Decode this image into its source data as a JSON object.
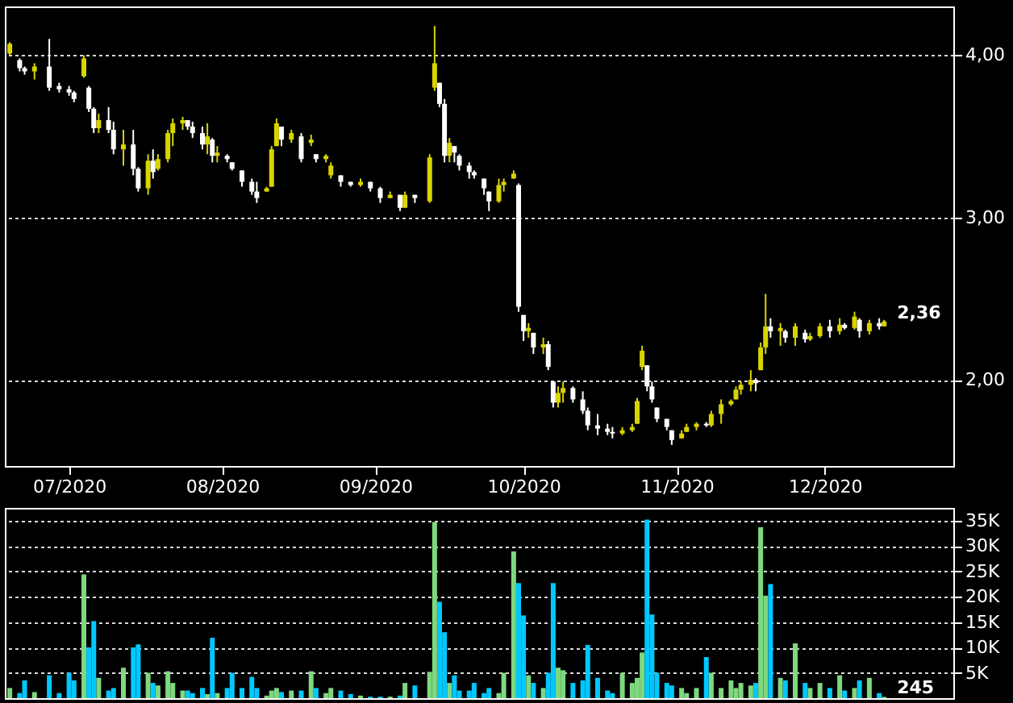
{
  "chart_data": [
    {
      "type": "candlestick",
      "xlim": [
        "2020-06-18",
        "2020-12-27"
      ],
      "ylim": [
        1.47,
        4.3
      ],
      "xticks": [
        {
          "value": "2020-07-01",
          "label": "07/2020"
        },
        {
          "value": "2020-08-01",
          "label": "08/2020"
        },
        {
          "value": "2020-09-01",
          "label": "09/2020"
        },
        {
          "value": "2020-10-01",
          "label": "10/2020"
        },
        {
          "value": "2020-11-01",
          "label": "11/2020"
        },
        {
          "value": "2020-12-01",
          "label": "12/2020"
        }
      ],
      "yticks": [
        {
          "value": 2,
          "label": "2,00"
        },
        {
          "value": 3,
          "label": "3,00"
        },
        {
          "value": 4,
          "label": "4,00"
        }
      ],
      "grid": "y",
      "annotations": [
        {
          "text": "2,36",
          "x": "2020-12-13",
          "y": 2.36
        }
      ],
      "series": [
        {
          "color": "#d8d400",
          "x": [
            "2020-06-19",
            "2020-06-24",
            "2020-07-04",
            "2020-07-07",
            "2020-07-12",
            "2020-07-17",
            "2020-07-19",
            "2020-07-21",
            "2020-07-22",
            "2020-07-24",
            "2020-07-29",
            "2020-07-31",
            "2020-08-10",
            "2020-08-11",
            "2020-08-12",
            "2020-08-15",
            "2020-08-19",
            "2020-08-22",
            "2020-08-23",
            "2020-08-29",
            "2020-09-04",
            "2020-09-07",
            "2020-09-12",
            "2020-09-13",
            "2020-09-16",
            "2020-09-26",
            "2020-09-27",
            "2020-09-29",
            "2020-10-02",
            "2020-10-05",
            "2020-10-08",
            "2020-10-09",
            "2020-10-21",
            "2020-10-23",
            "2020-10-24",
            "2020-10-25",
            "2020-11-02",
            "2020-11-03",
            "2020-11-05",
            "2020-11-08",
            "2020-11-10",
            "2020-11-12",
            "2020-11-13",
            "2020-11-14",
            "2020-11-16",
            "2020-11-18",
            "2020-11-19",
            "2020-11-22",
            "2020-11-25",
            "2020-11-28",
            "2020-11-30",
            "2020-12-04",
            "2020-12-07",
            "2020-12-10",
            "2020-12-13"
          ],
          "ohlc": [
            [
              4.01,
              4.08,
              4.0,
              4.07
            ],
            [
              3.9,
              3.95,
              3.85,
              3.93
            ],
            [
              3.87,
              4.0,
              3.86,
              3.98
            ],
            [
              3.55,
              3.64,
              3.52,
              3.6
            ],
            [
              3.42,
              3.54,
              3.32,
              3.45
            ],
            [
              3.18,
              3.39,
              3.14,
              3.35
            ],
            [
              3.3,
              3.39,
              3.29,
              3.36
            ],
            [
              3.36,
              3.54,
              3.34,
              3.52
            ],
            [
              3.52,
              3.61,
              3.44,
              3.58
            ],
            [
              3.58,
              3.62,
              3.54,
              3.6
            ],
            [
              3.45,
              3.58,
              3.39,
              3.5
            ],
            [
              3.38,
              3.44,
              3.34,
              3.4
            ],
            [
              3.16,
              3.19,
              3.16,
              3.18
            ],
            [
              3.19,
              3.44,
              3.19,
              3.42
            ],
            [
              3.44,
              3.61,
              3.44,
              3.58
            ],
            [
              3.48,
              3.54,
              3.46,
              3.52
            ],
            [
              3.46,
              3.51,
              3.44,
              3.48
            ],
            [
              3.36,
              3.39,
              3.34,
              3.38
            ],
            [
              3.26,
              3.34,
              3.24,
              3.32
            ],
            [
              3.2,
              3.24,
              3.19,
              3.22
            ],
            [
              3.12,
              3.16,
              3.12,
              3.14
            ],
            [
              3.06,
              3.16,
              3.06,
              3.14
            ],
            [
              3.1,
              3.39,
              3.09,
              3.37
            ],
            [
              3.8,
              4.18,
              3.78,
              3.95
            ],
            [
              3.38,
              3.49,
              3.34,
              3.46
            ],
            [
              3.1,
              3.24,
              3.09,
              3.2
            ],
            [
              3.2,
              3.24,
              3.16,
              3.22
            ],
            [
              3.24,
              3.29,
              3.24,
              3.27
            ],
            [
              2.3,
              2.35,
              2.26,
              2.32
            ],
            [
              2.2,
              2.26,
              2.16,
              2.22
            ],
            [
              1.86,
              1.96,
              1.83,
              1.92
            ],
            [
              1.92,
              1.99,
              1.86,
              1.95
            ],
            [
              1.67,
              1.71,
              1.66,
              1.69
            ],
            [
              1.69,
              1.73,
              1.68,
              1.71
            ],
            [
              1.73,
              1.89,
              1.73,
              1.87
            ],
            [
              2.08,
              2.21,
              2.06,
              2.18
            ],
            [
              1.64,
              1.69,
              1.64,
              1.67
            ],
            [
              1.68,
              1.73,
              1.68,
              1.71
            ],
            [
              1.71,
              1.74,
              1.69,
              1.73
            ],
            [
              1.72,
              1.81,
              1.71,
              1.79
            ],
            [
              1.79,
              1.88,
              1.73,
              1.85
            ],
            [
              1.85,
              1.88,
              1.84,
              1.87
            ],
            [
              1.88,
              1.96,
              1.88,
              1.94
            ],
            [
              1.94,
              1.99,
              1.91,
              1.97
            ],
            [
              1.97,
              2.06,
              1.93,
              2.0
            ],
            [
              2.06,
              2.23,
              2.06,
              2.2
            ],
            [
              2.2,
              2.53,
              2.16,
              2.33
            ],
            [
              2.3,
              2.35,
              2.21,
              2.32
            ],
            [
              2.26,
              2.35,
              2.21,
              2.33
            ],
            [
              2.25,
              2.29,
              2.24,
              2.27
            ],
            [
              2.27,
              2.35,
              2.26,
              2.33
            ],
            [
              2.3,
              2.38,
              2.28,
              2.34
            ],
            [
              2.32,
              2.42,
              2.31,
              2.39
            ],
            [
              2.3,
              2.37,
              2.28,
              2.35
            ],
            [
              2.33,
              2.37,
              2.33,
              2.36
            ]
          ]
        },
        {
          "color": "#ffffff",
          "x": [
            "2020-06-21",
            "2020-06-22",
            "2020-06-27",
            "2020-06-29",
            "2020-07-01",
            "2020-07-02",
            "2020-07-05",
            "2020-07-06",
            "2020-07-09",
            "2020-07-10",
            "2020-07-14",
            "2020-07-15",
            "2020-07-18",
            "2020-07-25",
            "2020-07-26",
            "2020-07-28",
            "2020-07-30",
            "2020-08-02",
            "2020-08-03",
            "2020-08-05",
            "2020-08-07",
            "2020-08-08",
            "2020-08-13",
            "2020-08-17",
            "2020-08-20",
            "2020-08-25",
            "2020-08-27",
            "2020-08-31",
            "2020-09-02",
            "2020-09-06",
            "2020-09-09",
            "2020-09-14",
            "2020-09-15",
            "2020-09-17",
            "2020-09-18",
            "2020-09-20",
            "2020-09-21",
            "2020-09-23",
            "2020-09-24",
            "2020-09-30",
            "2020-10-01",
            "2020-10-03",
            "2020-10-06",
            "2020-10-07",
            "2020-10-11",
            "2020-10-13",
            "2020-10-14",
            "2020-10-16",
            "2020-10-18",
            "2020-10-19",
            "2020-10-26",
            "2020-10-27",
            "2020-10-28",
            "2020-10-30",
            "2020-10-31",
            "2020-11-07",
            "2020-11-17",
            "2020-11-20",
            "2020-11-23",
            "2020-11-27",
            "2020-12-02",
            "2020-12-05",
            "2020-12-08",
            "2020-12-12"
          ],
          "ohlc": [
            [
              3.97,
              3.98,
              3.9,
              3.92
            ],
            [
              3.92,
              3.93,
              3.88,
              3.9
            ],
            [
              3.93,
              4.1,
              3.78,
              3.8
            ],
            [
              3.81,
              3.83,
              3.77,
              3.79
            ],
            [
              3.79,
              3.81,
              3.75,
              3.77
            ],
            [
              3.77,
              3.78,
              3.71,
              3.73
            ],
            [
              3.8,
              3.81,
              3.65,
              3.67
            ],
            [
              3.67,
              3.68,
              3.52,
              3.55
            ],
            [
              3.6,
              3.68,
              3.52,
              3.54
            ],
            [
              3.54,
              3.59,
              3.39,
              3.42
            ],
            [
              3.45,
              3.54,
              3.26,
              3.3
            ],
            [
              3.3,
              3.31,
              3.16,
              3.18
            ],
            [
              3.35,
              3.42,
              3.24,
              3.28
            ],
            [
              3.6,
              3.6,
              3.54,
              3.56
            ],
            [
              3.56,
              3.59,
              3.49,
              3.52
            ],
            [
              3.52,
              3.56,
              3.42,
              3.45
            ],
            [
              3.48,
              3.49,
              3.34,
              3.38
            ],
            [
              3.38,
              3.39,
              3.34,
              3.36
            ],
            [
              3.34,
              3.34,
              3.29,
              3.3
            ],
            [
              3.29,
              3.29,
              3.19,
              3.22
            ],
            [
              3.22,
              3.24,
              3.14,
              3.16
            ],
            [
              3.16,
              3.22,
              3.09,
              3.12
            ],
            [
              3.56,
              3.56,
              3.44,
              3.48
            ],
            [
              3.5,
              3.52,
              3.34,
              3.36
            ],
            [
              3.39,
              3.39,
              3.34,
              3.36
            ],
            [
              3.26,
              3.26,
              3.19,
              3.22
            ],
            [
              3.22,
              3.22,
              3.19,
              3.2
            ],
            [
              3.22,
              3.22,
              3.16,
              3.18
            ],
            [
              3.18,
              3.19,
              3.09,
              3.12
            ],
            [
              3.14,
              3.14,
              3.04,
              3.06
            ],
            [
              3.14,
              3.14,
              3.09,
              3.12
            ],
            [
              3.83,
              3.83,
              3.68,
              3.7
            ],
            [
              3.7,
              3.73,
              3.34,
              3.38
            ],
            [
              3.44,
              3.44,
              3.34,
              3.4
            ],
            [
              3.38,
              3.39,
              3.29,
              3.32
            ],
            [
              3.32,
              3.34,
              3.24,
              3.28
            ],
            [
              3.28,
              3.29,
              3.24,
              3.26
            ],
            [
              3.24,
              3.24,
              3.14,
              3.18
            ],
            [
              3.16,
              3.16,
              3.04,
              3.1
            ],
            [
              3.2,
              3.21,
              2.42,
              2.45
            ],
            [
              2.4,
              2.4,
              2.24,
              2.3
            ],
            [
              2.29,
              2.29,
              2.16,
              2.2
            ],
            [
              2.22,
              2.24,
              2.06,
              2.08
            ],
            [
              1.99,
              1.99,
              1.83,
              1.86
            ],
            [
              1.95,
              1.96,
              1.86,
              1.88
            ],
            [
              1.88,
              1.93,
              1.79,
              1.81
            ],
            [
              1.81,
              1.83,
              1.69,
              1.72
            ],
            [
              1.72,
              1.79,
              1.66,
              1.7
            ],
            [
              1.7,
              1.73,
              1.66,
              1.68
            ],
            [
              1.68,
              1.71,
              1.64,
              1.67
            ],
            [
              2.09,
              2.09,
              1.93,
              1.96
            ],
            [
              1.96,
              1.99,
              1.86,
              1.88
            ],
            [
              1.83,
              1.83,
              1.74,
              1.76
            ],
            [
              1.76,
              1.76,
              1.69,
              1.71
            ],
            [
              1.69,
              1.69,
              1.6,
              1.63
            ],
            [
              1.73,
              1.74,
              1.71,
              1.72
            ],
            [
              2.0,
              2.01,
              1.93,
              1.98
            ],
            [
              2.33,
              2.38,
              2.26,
              2.3
            ],
            [
              2.3,
              2.31,
              2.23,
              2.26
            ],
            [
              2.29,
              2.31,
              2.23,
              2.25
            ],
            [
              2.33,
              2.37,
              2.26,
              2.3
            ],
            [
              2.34,
              2.35,
              2.31,
              2.32
            ],
            [
              2.37,
              2.38,
              2.26,
              2.3
            ],
            [
              2.35,
              2.38,
              2.31,
              2.33
            ]
          ]
        }
      ]
    },
    {
      "type": "bar",
      "xlim": [
        "2020-06-18",
        "2020-12-27"
      ],
      "ylim": [
        0,
        37500
      ],
      "tick_labels": "y",
      "yticks": [
        {
          "value": 5000,
          "label": "5K"
        },
        {
          "value": 10000,
          "label": "10K"
        },
        {
          "value": 15000,
          "label": "15K"
        },
        {
          "value": 20000,
          "label": "20K"
        },
        {
          "value": 25000,
          "label": "25K"
        },
        {
          "value": 30000,
          "label": "30K"
        },
        {
          "value": 35000,
          "label": "35K"
        }
      ],
      "grid": "y",
      "annotations": [
        {
          "text": "245",
          "x": "2020-12-13",
          "y": 245
        }
      ],
      "series": [
        {
          "color": "#7ed87e",
          "x": [
            "2020-06-19",
            "2020-06-24",
            "2020-07-04",
            "2020-07-07",
            "2020-07-12",
            "2020-07-17",
            "2020-07-19",
            "2020-07-21",
            "2020-07-22",
            "2020-07-24",
            "2020-07-29",
            "2020-07-31",
            "2020-08-10",
            "2020-08-11",
            "2020-08-12",
            "2020-08-15",
            "2020-08-19",
            "2020-08-22",
            "2020-08-23",
            "2020-08-29",
            "2020-09-04",
            "2020-09-07",
            "2020-09-12",
            "2020-09-13",
            "2020-09-16",
            "2020-09-26",
            "2020-09-27",
            "2020-09-29",
            "2020-10-02",
            "2020-10-05",
            "2020-10-08",
            "2020-10-09",
            "2020-10-21",
            "2020-10-23",
            "2020-10-24",
            "2020-10-25",
            "2020-11-02",
            "2020-11-03",
            "2020-11-05",
            "2020-11-08",
            "2020-11-10",
            "2020-11-12",
            "2020-11-13",
            "2020-11-14",
            "2020-11-16",
            "2020-11-18",
            "2020-11-19",
            "2020-11-22",
            "2020-11-25",
            "2020-11-28",
            "2020-11-30",
            "2020-12-04",
            "2020-12-07",
            "2020-12-10",
            "2020-12-13"
          ],
          "values": [
            2000,
            1200,
            24400,
            4000,
            6000,
            5000,
            2500,
            5300,
            3000,
            1500,
            800,
            1000,
            500,
            1500,
            2000,
            1500,
            5300,
            1000,
            2000,
            500,
            300,
            3000,
            5200,
            34700,
            3000,
            1000,
            5000,
            28900,
            4500,
            2000,
            6000,
            5500,
            5000,
            3000,
            4000,
            9000,
            2000,
            1000,
            2000,
            5000,
            2000,
            3500,
            2000,
            3000,
            2500,
            33700,
            20200,
            4000,
            10800,
            2000,
            3000,
            4500,
            2000,
            4000,
            245
          ]
        },
        {
          "color": "#00c8ff",
          "x": [
            "2020-06-21",
            "2020-06-22",
            "2020-06-27",
            "2020-06-29",
            "2020-07-01",
            "2020-07-02",
            "2020-07-05",
            "2020-07-06",
            "2020-07-09",
            "2020-07-10",
            "2020-07-14",
            "2020-07-15",
            "2020-07-18",
            "2020-07-25",
            "2020-07-26",
            "2020-07-28",
            "2020-07-30",
            "2020-08-02",
            "2020-08-03",
            "2020-08-05",
            "2020-08-07",
            "2020-08-08",
            "2020-08-13",
            "2020-08-17",
            "2020-08-20",
            "2020-08-25",
            "2020-08-27",
            "2020-08-31",
            "2020-09-02",
            "2020-09-06",
            "2020-09-09",
            "2020-09-14",
            "2020-09-15",
            "2020-09-17",
            "2020-09-18",
            "2020-09-20",
            "2020-09-21",
            "2020-09-23",
            "2020-09-24",
            "2020-09-30",
            "2020-10-01",
            "2020-10-03",
            "2020-10-06",
            "2020-10-07",
            "2020-10-11",
            "2020-10-13",
            "2020-10-14",
            "2020-10-16",
            "2020-10-18",
            "2020-10-19",
            "2020-10-26",
            "2020-10-27",
            "2020-10-28",
            "2020-10-30",
            "2020-10-31",
            "2020-11-07",
            "2020-11-17",
            "2020-11-20",
            "2020-11-23",
            "2020-11-27",
            "2020-12-02",
            "2020-12-05",
            "2020-12-08",
            "2020-12-12"
          ],
          "values": [
            1000,
            3500,
            4500,
            1000,
            5000,
            3500,
            10000,
            15200,
            1500,
            2000,
            10000,
            10600,
            3000,
            1500,
            1000,
            2000,
            11900,
            2000,
            5000,
            2000,
            4200,
            2000,
            1200,
            1500,
            2000,
            1500,
            800,
            300,
            300,
            500,
            2500,
            19000,
            13000,
            4500,
            1500,
            1500,
            3000,
            1000,
            2000,
            22700,
            16300,
            3000,
            5000,
            22700,
            3000,
            3500,
            10500,
            4000,
            1500,
            1000,
            35200,
            16500,
            5000,
            3000,
            2500,
            8100,
            3000,
            22500,
            3500,
            3000,
            2000,
            1500,
            3500,
            1000
          ]
        }
      ]
    }
  ]
}
